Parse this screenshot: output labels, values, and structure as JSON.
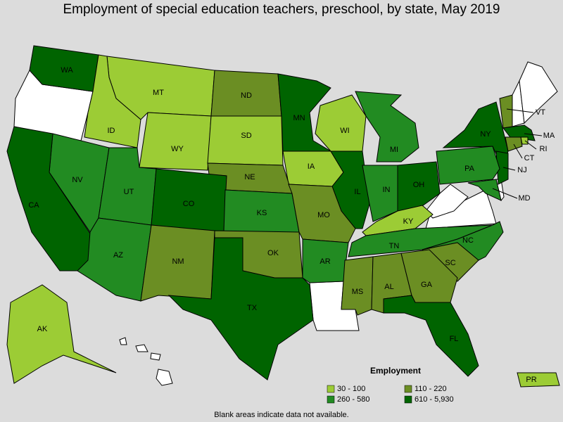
{
  "title": "Employment of special education teachers, preschool, by state, May 2019",
  "legend": {
    "title": "Employment",
    "items": [
      {
        "label": "30 - 100",
        "color": "#9ccc35"
      },
      {
        "label": "110 - 220",
        "color": "#6b8e23"
      },
      {
        "label": "260 - 580",
        "color": "#228b22"
      },
      {
        "label": "610 - 5,930",
        "color": "#006400"
      }
    ]
  },
  "footnote": "Blank areas indicate data not available.",
  "states": [
    {
      "label": "WA",
      "color": "#006400"
    },
    {
      "label": "MT",
      "color": "#9ccc35"
    },
    {
      "label": "ID",
      "color": "#9ccc35"
    },
    {
      "label": "ND",
      "color": "#6b8e23"
    },
    {
      "label": "MN",
      "color": "#006400"
    },
    {
      "label": "WY",
      "color": "#9ccc35"
    },
    {
      "label": "SD",
      "color": "#9ccc35"
    },
    {
      "label": "WI",
      "color": "#9ccc35"
    },
    {
      "label": "NY",
      "color": "#006400"
    },
    {
      "label": "VT",
      "color": "#6b8e23"
    },
    {
      "label": "MA",
      "color": "#006400"
    },
    {
      "label": "RI",
      "color": "#9ccc35"
    },
    {
      "label": "CT",
      "color": "#6b8e23"
    },
    {
      "label": "NJ",
      "color": "#006400"
    },
    {
      "label": "MD",
      "color": "#228b22"
    },
    {
      "label": "MI",
      "color": "#228b22"
    },
    {
      "label": "PA",
      "color": "#228b22"
    },
    {
      "label": "IA",
      "color": "#9ccc35"
    },
    {
      "label": "NE",
      "color": "#6b8e23"
    },
    {
      "label": "NV",
      "color": "#228b22"
    },
    {
      "label": "UT",
      "color": "#228b22"
    },
    {
      "label": "CO",
      "color": "#006400"
    },
    {
      "label": "CA",
      "color": "#006400"
    },
    {
      "label": "KS",
      "color": "#228b22"
    },
    {
      "label": "IL",
      "color": "#006400"
    },
    {
      "label": "IN",
      "color": "#228b22"
    },
    {
      "label": "OH",
      "color": "#006400"
    },
    {
      "label": "KY",
      "color": "#9ccc35"
    },
    {
      "label": "MO",
      "color": "#6b8e23"
    },
    {
      "label": "AZ",
      "color": "#228b22"
    },
    {
      "label": "NM",
      "color": "#6b8e23"
    },
    {
      "label": "OK",
      "color": "#6b8e23"
    },
    {
      "label": "TN",
      "color": "#228b22"
    },
    {
      "label": "AR",
      "color": "#228b22"
    },
    {
      "label": "NC",
      "color": "#228b22"
    },
    {
      "label": "SC",
      "color": "#6b8e23"
    },
    {
      "label": "MS",
      "color": "#6b8e23"
    },
    {
      "label": "AL",
      "color": "#6b8e23"
    },
    {
      "label": "GA",
      "color": "#6b8e23"
    },
    {
      "label": "TX",
      "color": "#006400"
    },
    {
      "label": "FL",
      "color": "#006400"
    },
    {
      "label": "AK",
      "color": "#9ccc35"
    },
    {
      "label": "PR",
      "color": "#9ccc35"
    }
  ]
}
